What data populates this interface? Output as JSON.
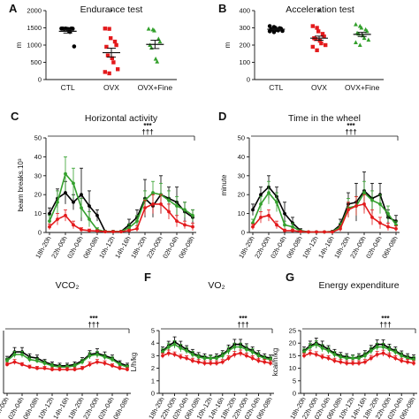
{
  "panel_letters": [
    "A",
    "B",
    "C",
    "D",
    "E",
    "F",
    "G"
  ],
  "colors": {
    "ctl": "#000000",
    "ovx": "#e31a1c",
    "fine": "#33a02c"
  },
  "chart_data": [
    {
      "id": "A",
      "type": "scatter",
      "title": "Endurance test",
      "xlabel": "",
      "ylabel": "m",
      "ylim": [
        0,
        2000
      ],
      "yticks": [
        0,
        500,
        1000,
        1500,
        2000
      ],
      "categories": [
        "CTL",
        "OVX",
        "OVX+Fine"
      ],
      "series": [
        {
          "category": "CTL",
          "color": "#000000",
          "marker": "circle",
          "points": [
            1480,
            1480,
            1470,
            1480,
            1475,
            1480,
            1470,
            1465,
            1380,
            960
          ],
          "mean": 1400,
          "sem": 50
        },
        {
          "category": "OVX",
          "color": "#e31a1c",
          "marker": "square",
          "points": [
            1480,
            1470,
            1200,
            1100,
            1000,
            950,
            700,
            620,
            500,
            300,
            220,
            180
          ],
          "mean": 780,
          "sem": 130
        },
        {
          "category": "OVX+Fine",
          "color": "#33a02c",
          "marker": "triangle",
          "points": [
            1470,
            1450,
            1420,
            1180,
            1100,
            1000,
            920,
            600,
            520
          ],
          "mean": 1020,
          "sem": 120
        }
      ],
      "annotations": [
        {
          "category": "OVX",
          "text": "*"
        }
      ]
    },
    {
      "id": "B",
      "type": "scatter",
      "title": "Acceleration test",
      "xlabel": "",
      "ylabel": "m",
      "ylim": [
        0,
        400
      ],
      "yticks": [
        0,
        100,
        200,
        300,
        400
      ],
      "categories": [
        "CTL",
        "OVX",
        "OVX+Fine"
      ],
      "series": [
        {
          "category": "CTL",
          "color": "#000000",
          "marker": "circle",
          "points": [
            310,
            305,
            300,
            298,
            295,
            292,
            290,
            288,
            285,
            282,
            280,
            275
          ],
          "mean": 292,
          "sem": 4
        },
        {
          "category": "OVX",
          "color": "#e31a1c",
          "marker": "square",
          "points": [
            310,
            300,
            280,
            265,
            250,
            240,
            235,
            225,
            210,
            200,
            190,
            170
          ],
          "mean": 240,
          "sem": 12
        },
        {
          "category": "OVX+Fine",
          "color": "#33a02c",
          "marker": "triangle",
          "points": [
            320,
            310,
            300,
            290,
            280,
            270,
            265,
            255,
            240,
            230,
            215,
            200
          ],
          "mean": 262,
          "sem": 12
        }
      ],
      "annotations": [
        {
          "category": "OVX",
          "text": "*"
        }
      ]
    },
    {
      "id": "C",
      "type": "line",
      "title": "Horizontal activity",
      "xlabel": "",
      "ylabel": "beam breaks.10³",
      "ylim": [
        0,
        50
      ],
      "yticks": [
        0,
        10,
        20,
        30,
        40,
        50
      ],
      "x": [
        "18h-20h",
        "",
        "22h-00h",
        "",
        "02h-04h",
        "",
        "06h-08h",
        "",
        "10h-12h",
        "",
        "14h-16h",
        "",
        "18h-20h",
        "",
        "22h-00h",
        "",
        "02h-04h",
        "",
        "06h-08h"
      ],
      "x_tick_labels": [
        "18h-20h",
        "22h-00h",
        "02h-04h",
        "06h-08h",
        "10h-12h",
        "14h-16h",
        "18h-20h",
        "22h-00h",
        "02h-04h",
        "06h-08h"
      ],
      "series": [
        {
          "name": "CTL",
          "color": "#000000",
          "values": [
            10,
            18,
            21,
            16,
            20,
            14,
            9,
            0.5,
            0.5,
            0.5,
            4,
            8,
            18,
            14,
            20,
            18,
            16,
            11,
            8
          ],
          "errors": [
            3,
            5,
            6,
            4,
            14,
            8,
            3,
            0.5,
            0.5,
            0.5,
            3,
            4,
            10,
            6,
            10,
            6,
            8,
            5,
            4
          ]
        },
        {
          "name": "OVX+Fine",
          "color": "#33a02c",
          "values": [
            6,
            16,
            31,
            26,
            13,
            7,
            1.5,
            0.5,
            0.5,
            0.5,
            2.5,
            6,
            17,
            21,
            20,
            17,
            14,
            12,
            9
          ],
          "errors": [
            3,
            6,
            9,
            8,
            5,
            4,
            1,
            0.3,
            0.3,
            0.3,
            2,
            3,
            5,
            6,
            6,
            5,
            5,
            4,
            3
          ]
        },
        {
          "name": "OVX",
          "color": "#e31a1c",
          "values": [
            3,
            7,
            9,
            4,
            1.5,
            1,
            0.8,
            0.4,
            0.4,
            0.4,
            1,
            2,
            13,
            15,
            15,
            11,
            6,
            4,
            3
          ],
          "errors": [
            1.5,
            3,
            3,
            2,
            1,
            0.8,
            0.5,
            0.3,
            0.3,
            0.3,
            0.8,
            1.5,
            4,
            5,
            5,
            4,
            3,
            2,
            2
          ]
        }
      ],
      "significance": [
        "***",
        "†††"
      ]
    },
    {
      "id": "D",
      "type": "line",
      "title": "Time in the wheel",
      "xlabel": "",
      "ylabel": "minute",
      "ylim": [
        0,
        50
      ],
      "yticks": [
        0,
        10,
        20,
        30,
        40,
        50
      ],
      "x_tick_labels": [
        "18h-20h",
        "22h-00h",
        "02h-04h",
        "06h-08h",
        "10h-12h",
        "14h-16h",
        "18h-20h",
        "22h-00h",
        "02h-04h",
        "06h-08h"
      ],
      "series": [
        {
          "name": "CTL",
          "color": "#000000",
          "values": [
            12,
            20,
            24,
            19,
            10,
            5,
            1,
            0.3,
            0.3,
            0.3,
            0.5,
            4,
            15,
            16,
            22,
            18,
            20,
            8,
            6
          ],
          "errors": [
            3,
            4,
            6,
            5,
            6,
            3,
            1,
            0.2,
            0.2,
            0.2,
            0.5,
            3,
            6,
            10,
            10,
            8,
            6,
            4,
            3
          ]
        },
        {
          "name": "OVX+Fine",
          "color": "#33a02c",
          "values": [
            5,
            15,
            21,
            16,
            4,
            3,
            0.8,
            0.3,
            0.3,
            0.3,
            0.4,
            3,
            13,
            14,
            21,
            17,
            15,
            10,
            4
          ],
          "errors": [
            2,
            4,
            6,
            5,
            2,
            2,
            0.5,
            0.2,
            0.2,
            0.2,
            0.3,
            2,
            5,
            5,
            6,
            5,
            5,
            4,
            2
          ]
        },
        {
          "name": "OVX",
          "color": "#e31a1c",
          "values": [
            3,
            8,
            9,
            4,
            1,
            1,
            0.5,
            0.3,
            0.3,
            0.3,
            0.3,
            2,
            12,
            14,
            15,
            8,
            5,
            3,
            2
          ],
          "errors": [
            1.5,
            3,
            3,
            2,
            0.8,
            0.8,
            0.3,
            0.2,
            0.2,
            0.2,
            0.2,
            1.5,
            4,
            5,
            5,
            4,
            3,
            2,
            1.5
          ]
        }
      ],
      "significance": [
        "***",
        "†††"
      ]
    },
    {
      "id": "E",
      "type": "line",
      "title": "VCO₂",
      "xlabel": "",
      "ylabel": "",
      "ylim": [
        0,
        5
      ],
      "yticks": [],
      "x_tick_labels": [
        "22h-00h",
        "02h-04h",
        "06h-08h",
        "10h-12h",
        "14h-16h",
        "18h-20h",
        "22h-00h",
        "02h-04h",
        "06h-08h"
      ],
      "series": [
        {
          "name": "CTL",
          "color": "#000000",
          "values": [
            2.7,
            3.3,
            3.3,
            2.9,
            2.8,
            2.5,
            2.3,
            2.2,
            2.2,
            2.3,
            2.6,
            3.1,
            3.2,
            3.0,
            2.8,
            2.4,
            2.2
          ],
          "errors": [
            0.25,
            0.35,
            0.35,
            0.25,
            0.25,
            0.2,
            0.2,
            0.2,
            0.2,
            0.2,
            0.25,
            0.3,
            0.35,
            0.3,
            0.25,
            0.2,
            0.2
          ]
        },
        {
          "name": "OVX+Fine",
          "color": "#33a02c",
          "values": [
            2.6,
            3.1,
            3.1,
            2.7,
            2.6,
            2.4,
            2.2,
            2.1,
            2.1,
            2.2,
            2.5,
            3.0,
            3.1,
            2.9,
            2.7,
            2.3,
            2.1
          ],
          "errors": [
            0.2,
            0.25,
            0.25,
            0.2,
            0.2,
            0.2,
            0.15,
            0.15,
            0.15,
            0.15,
            0.2,
            0.25,
            0.25,
            0.2,
            0.2,
            0.15,
            0.15
          ]
        },
        {
          "name": "OVX",
          "color": "#e31a1c",
          "values": [
            2.3,
            2.5,
            2.3,
            2.1,
            2.0,
            2.0,
            1.9,
            1.9,
            1.9,
            1.9,
            2.0,
            2.3,
            2.5,
            2.4,
            2.2,
            2.0,
            1.9
          ],
          "errors": [
            0.15,
            0.2,
            0.15,
            0.15,
            0.15,
            0.15,
            0.15,
            0.15,
            0.15,
            0.15,
            0.15,
            0.2,
            0.2,
            0.2,
            0.15,
            0.15,
            0.15
          ]
        }
      ],
      "significance": [
        "***",
        "†††"
      ]
    },
    {
      "id": "F",
      "type": "line",
      "title": "VO₂",
      "xlabel": "",
      "ylabel": "L/h/kg",
      "ylim": [
        0,
        5
      ],
      "yticks": [
        0,
        1,
        2,
        3,
        4,
        5
      ],
      "x_tick_labels": [
        "18h-20h",
        "22h-00h",
        "02h-04h",
        "06h-08h",
        "10h-12h",
        "14h-16h",
        "18h-20h",
        "22h-00h",
        "02h-04h",
        "06h-08h"
      ],
      "series": [
        {
          "name": "CTL",
          "color": "#000000",
          "values": [
            3.4,
            3.8,
            4.1,
            3.8,
            3.5,
            3.2,
            3.0,
            2.9,
            2.8,
            2.9,
            3.1,
            3.5,
            3.9,
            3.9,
            3.6,
            3.4,
            3.1,
            2.9,
            2.8
          ],
          "errors": [
            0.3,
            0.35,
            0.4,
            0.35,
            0.3,
            0.3,
            0.25,
            0.25,
            0.25,
            0.25,
            0.3,
            0.35,
            0.4,
            0.4,
            0.35,
            0.3,
            0.3,
            0.25,
            0.25
          ]
        },
        {
          "name": "OVX+Fine",
          "color": "#33a02c",
          "values": [
            3.3,
            3.7,
            3.9,
            3.6,
            3.4,
            3.1,
            2.9,
            2.8,
            2.8,
            2.8,
            3.0,
            3.4,
            3.7,
            3.7,
            3.5,
            3.3,
            3.0,
            2.8,
            2.7
          ],
          "errors": [
            0.25,
            0.3,
            0.3,
            0.3,
            0.25,
            0.25,
            0.2,
            0.2,
            0.2,
            0.2,
            0.25,
            0.3,
            0.3,
            0.3,
            0.3,
            0.25,
            0.25,
            0.2,
            0.2
          ]
        },
        {
          "name": "OVX",
          "color": "#e31a1c",
          "values": [
            3.0,
            3.2,
            3.1,
            2.9,
            2.8,
            2.6,
            2.5,
            2.4,
            2.4,
            2.4,
            2.5,
            2.8,
            3.1,
            3.2,
            3.0,
            2.8,
            2.6,
            2.5,
            2.4
          ],
          "errors": [
            0.2,
            0.25,
            0.2,
            0.2,
            0.2,
            0.2,
            0.2,
            0.2,
            0.2,
            0.2,
            0.2,
            0.2,
            0.25,
            0.25,
            0.2,
            0.2,
            0.2,
            0.2,
            0.2
          ]
        }
      ],
      "significance": [
        "***",
        "†††"
      ]
    },
    {
      "id": "G",
      "type": "line",
      "title": "Energy expenditure",
      "xlabel": "",
      "ylabel": "kcal/h/kg",
      "ylim": [
        0,
        25
      ],
      "yticks": [
        0,
        5,
        10,
        15,
        20,
        25
      ],
      "x_tick_labels": [
        "18h-20h",
        "22h-00h",
        "02h-04h",
        "06h-08h",
        "10h-12h",
        "14h-16h",
        "18h-20h",
        "22h-00h",
        "02h-04h",
        "06h-08h"
      ],
      "series": [
        {
          "name": "CTL",
          "color": "#000000",
          "values": [
            17,
            19,
            20,
            19,
            17.5,
            16,
            15,
            14.5,
            14,
            14.5,
            15.5,
            17.5,
            19.5,
            19.5,
            18,
            17,
            15.5,
            14.5,
            14
          ],
          "errors": [
            1.5,
            1.8,
            2,
            1.8,
            1.5,
            1.5,
            1.3,
            1.3,
            1.3,
            1.3,
            1.5,
            1.6,
            1.8,
            1.8,
            1.6,
            1.5,
            1.4,
            1.3,
            1.3
          ]
        },
        {
          "name": "OVX+Fine",
          "color": "#33a02c",
          "values": [
            16.5,
            18.5,
            19.5,
            18,
            17,
            15.5,
            14.5,
            14,
            14,
            14,
            15,
            17,
            18.5,
            18.5,
            17.5,
            16.5,
            15,
            14,
            13.5
          ],
          "errors": [
            1.2,
            1.4,
            1.5,
            1.4,
            1.3,
            1.2,
            1.1,
            1.1,
            1.1,
            1.1,
            1.2,
            1.3,
            1.4,
            1.4,
            1.3,
            1.2,
            1.2,
            1.1,
            1.1
          ]
        },
        {
          "name": "OVX",
          "color": "#e31a1c",
          "values": [
            15,
            16,
            15.5,
            14.5,
            14,
            13,
            12.5,
            12,
            12,
            12,
            12.5,
            14,
            15.5,
            16,
            15,
            14,
            13,
            12.5,
            12
          ],
          "errors": [
            1,
            1.2,
            1.1,
            1,
            1,
            1,
            1,
            1,
            1,
            1,
            1,
            1.1,
            1.2,
            1.2,
            1.1,
            1,
            1,
            1,
            1
          ]
        }
      ],
      "significance": [
        "***",
        "†††"
      ]
    }
  ]
}
